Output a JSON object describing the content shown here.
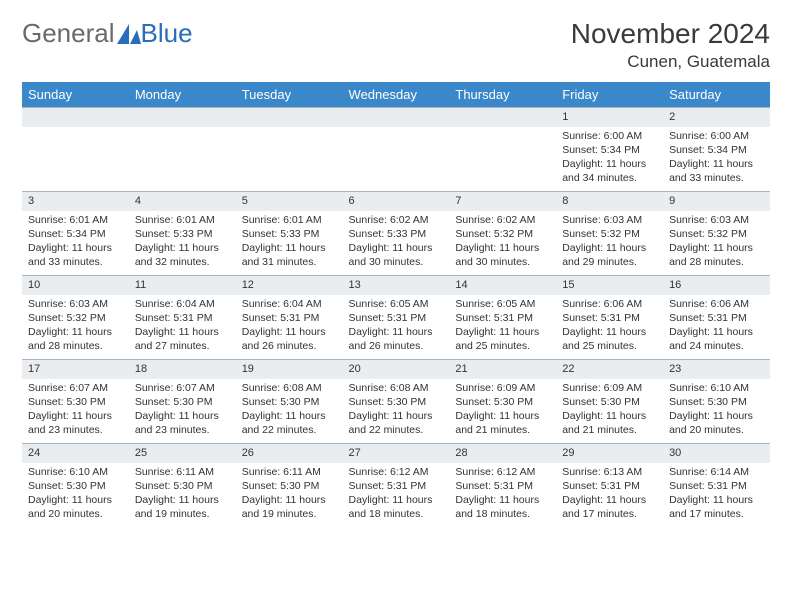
{
  "logo": {
    "word1": "General",
    "word2": "Blue"
  },
  "title": "November 2024",
  "location": "Cunen, Guatemala",
  "colors": {
    "header_bg": "#3a87c9",
    "header_fg": "#ffffff",
    "daynum_bg": "#e9edf0",
    "daynum_border": "#a8b5c0",
    "text": "#333333",
    "logo_gray": "#6a6a6a",
    "logo_blue": "#2a6db8"
  },
  "weekdays": [
    "Sunday",
    "Monday",
    "Tuesday",
    "Wednesday",
    "Thursday",
    "Friday",
    "Saturday"
  ],
  "weeks": [
    [
      {
        "n": "",
        "sr": "",
        "ss": "",
        "dl": ""
      },
      {
        "n": "",
        "sr": "",
        "ss": "",
        "dl": ""
      },
      {
        "n": "",
        "sr": "",
        "ss": "",
        "dl": ""
      },
      {
        "n": "",
        "sr": "",
        "ss": "",
        "dl": ""
      },
      {
        "n": "",
        "sr": "",
        "ss": "",
        "dl": ""
      },
      {
        "n": "1",
        "sr": "Sunrise: 6:00 AM",
        "ss": "Sunset: 5:34 PM",
        "dl": "Daylight: 11 hours and 34 minutes."
      },
      {
        "n": "2",
        "sr": "Sunrise: 6:00 AM",
        "ss": "Sunset: 5:34 PM",
        "dl": "Daylight: 11 hours and 33 minutes."
      }
    ],
    [
      {
        "n": "3",
        "sr": "Sunrise: 6:01 AM",
        "ss": "Sunset: 5:34 PM",
        "dl": "Daylight: 11 hours and 33 minutes."
      },
      {
        "n": "4",
        "sr": "Sunrise: 6:01 AM",
        "ss": "Sunset: 5:33 PM",
        "dl": "Daylight: 11 hours and 32 minutes."
      },
      {
        "n": "5",
        "sr": "Sunrise: 6:01 AM",
        "ss": "Sunset: 5:33 PM",
        "dl": "Daylight: 11 hours and 31 minutes."
      },
      {
        "n": "6",
        "sr": "Sunrise: 6:02 AM",
        "ss": "Sunset: 5:33 PM",
        "dl": "Daylight: 11 hours and 30 minutes."
      },
      {
        "n": "7",
        "sr": "Sunrise: 6:02 AM",
        "ss": "Sunset: 5:32 PM",
        "dl": "Daylight: 11 hours and 30 minutes."
      },
      {
        "n": "8",
        "sr": "Sunrise: 6:03 AM",
        "ss": "Sunset: 5:32 PM",
        "dl": "Daylight: 11 hours and 29 minutes."
      },
      {
        "n": "9",
        "sr": "Sunrise: 6:03 AM",
        "ss": "Sunset: 5:32 PM",
        "dl": "Daylight: 11 hours and 28 minutes."
      }
    ],
    [
      {
        "n": "10",
        "sr": "Sunrise: 6:03 AM",
        "ss": "Sunset: 5:32 PM",
        "dl": "Daylight: 11 hours and 28 minutes."
      },
      {
        "n": "11",
        "sr": "Sunrise: 6:04 AM",
        "ss": "Sunset: 5:31 PM",
        "dl": "Daylight: 11 hours and 27 minutes."
      },
      {
        "n": "12",
        "sr": "Sunrise: 6:04 AM",
        "ss": "Sunset: 5:31 PM",
        "dl": "Daylight: 11 hours and 26 minutes."
      },
      {
        "n": "13",
        "sr": "Sunrise: 6:05 AM",
        "ss": "Sunset: 5:31 PM",
        "dl": "Daylight: 11 hours and 26 minutes."
      },
      {
        "n": "14",
        "sr": "Sunrise: 6:05 AM",
        "ss": "Sunset: 5:31 PM",
        "dl": "Daylight: 11 hours and 25 minutes."
      },
      {
        "n": "15",
        "sr": "Sunrise: 6:06 AM",
        "ss": "Sunset: 5:31 PM",
        "dl": "Daylight: 11 hours and 25 minutes."
      },
      {
        "n": "16",
        "sr": "Sunrise: 6:06 AM",
        "ss": "Sunset: 5:31 PM",
        "dl": "Daylight: 11 hours and 24 minutes."
      }
    ],
    [
      {
        "n": "17",
        "sr": "Sunrise: 6:07 AM",
        "ss": "Sunset: 5:30 PM",
        "dl": "Daylight: 11 hours and 23 minutes."
      },
      {
        "n": "18",
        "sr": "Sunrise: 6:07 AM",
        "ss": "Sunset: 5:30 PM",
        "dl": "Daylight: 11 hours and 23 minutes."
      },
      {
        "n": "19",
        "sr": "Sunrise: 6:08 AM",
        "ss": "Sunset: 5:30 PM",
        "dl": "Daylight: 11 hours and 22 minutes."
      },
      {
        "n": "20",
        "sr": "Sunrise: 6:08 AM",
        "ss": "Sunset: 5:30 PM",
        "dl": "Daylight: 11 hours and 22 minutes."
      },
      {
        "n": "21",
        "sr": "Sunrise: 6:09 AM",
        "ss": "Sunset: 5:30 PM",
        "dl": "Daylight: 11 hours and 21 minutes."
      },
      {
        "n": "22",
        "sr": "Sunrise: 6:09 AM",
        "ss": "Sunset: 5:30 PM",
        "dl": "Daylight: 11 hours and 21 minutes."
      },
      {
        "n": "23",
        "sr": "Sunrise: 6:10 AM",
        "ss": "Sunset: 5:30 PM",
        "dl": "Daylight: 11 hours and 20 minutes."
      }
    ],
    [
      {
        "n": "24",
        "sr": "Sunrise: 6:10 AM",
        "ss": "Sunset: 5:30 PM",
        "dl": "Daylight: 11 hours and 20 minutes."
      },
      {
        "n": "25",
        "sr": "Sunrise: 6:11 AM",
        "ss": "Sunset: 5:30 PM",
        "dl": "Daylight: 11 hours and 19 minutes."
      },
      {
        "n": "26",
        "sr": "Sunrise: 6:11 AM",
        "ss": "Sunset: 5:30 PM",
        "dl": "Daylight: 11 hours and 19 minutes."
      },
      {
        "n": "27",
        "sr": "Sunrise: 6:12 AM",
        "ss": "Sunset: 5:31 PM",
        "dl": "Daylight: 11 hours and 18 minutes."
      },
      {
        "n": "28",
        "sr": "Sunrise: 6:12 AM",
        "ss": "Sunset: 5:31 PM",
        "dl": "Daylight: 11 hours and 18 minutes."
      },
      {
        "n": "29",
        "sr": "Sunrise: 6:13 AM",
        "ss": "Sunset: 5:31 PM",
        "dl": "Daylight: 11 hours and 17 minutes."
      },
      {
        "n": "30",
        "sr": "Sunrise: 6:14 AM",
        "ss": "Sunset: 5:31 PM",
        "dl": "Daylight: 11 hours and 17 minutes."
      }
    ]
  ]
}
